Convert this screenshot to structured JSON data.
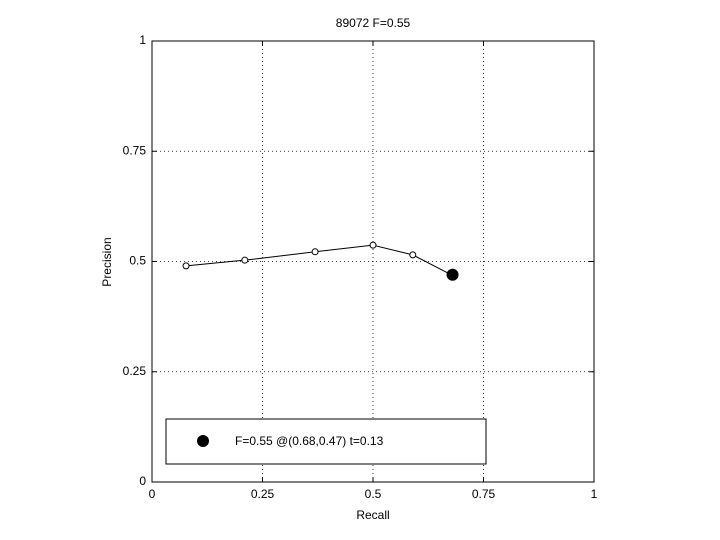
{
  "chart_data": {
    "type": "line",
    "title": "89072 F=0.55",
    "xlabel": "Recall",
    "ylabel": "Precision",
    "x": [
      0.077,
      0.21,
      0.369,
      0.5,
      0.59,
      0.679
    ],
    "series": [
      {
        "color": "#000000",
        "values": [
          0.49,
          0.503,
          0.522,
          0.537,
          0.515,
          0.469
        ]
      }
    ],
    "best_point": {
      "x": 0.68,
      "y": 0.47,
      "label": "F=0.55 @(0.68,0.47) t=0.13"
    },
    "xlim": [
      0,
      1
    ],
    "ylim": [
      0,
      1
    ],
    "xticks": [
      0,
      0.25,
      0.5,
      0.75,
      1
    ],
    "yticks": [
      0,
      0.25,
      0.5,
      0.75,
      1
    ],
    "grid": true,
    "legend": "lower left"
  }
}
